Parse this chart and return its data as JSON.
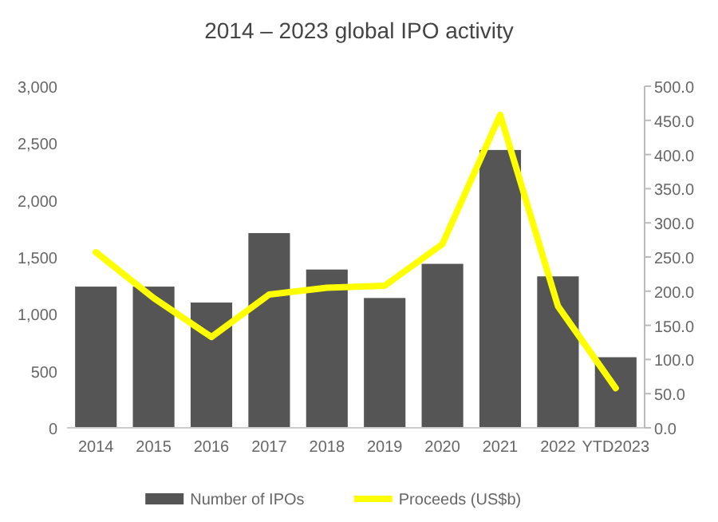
{
  "chart_data": {
    "type": "bar",
    "title": "2014 – 2023 global IPO activity",
    "categories": [
      "2014",
      "2015",
      "2016",
      "2017",
      "2018",
      "2019",
      "2020",
      "2021",
      "2022",
      "YTD2023"
    ],
    "series": [
      {
        "name": "Number of IPOs",
        "color": "#555555",
        "values": [
          1240,
          1240,
          1100,
          1710,
          1390,
          1140,
          1440,
          2440,
          1330,
          620
        ]
      },
      {
        "name": "Proceeds (US$b)",
        "type": "line",
        "axis": "y2",
        "color": "#ffff00",
        "values": [
          257,
          190,
          133,
          195,
          205,
          208,
          269,
          458,
          178,
          58
        ]
      }
    ],
    "ylim": [
      0,
      3000
    ],
    "yticks": [
      {
        "value": 0,
        "label": "0"
      },
      {
        "value": 500,
        "label": "500"
      },
      {
        "value": 1000,
        "label": "1,000"
      },
      {
        "value": 1500,
        "label": "1,500"
      },
      {
        "value": 2000,
        "label": "2,000"
      },
      {
        "value": 2500,
        "label": "2,500"
      },
      {
        "value": 3000,
        "label": "3,000"
      }
    ],
    "y2lim": [
      0,
      500
    ],
    "y2ticks": [
      {
        "value": 0,
        "label": "0.0"
      },
      {
        "value": 50,
        "label": "50.0"
      },
      {
        "value": 100,
        "label": "100.0"
      },
      {
        "value": 150,
        "label": "150.0"
      },
      {
        "value": 200,
        "label": "200.0"
      },
      {
        "value": 250,
        "label": "250.0"
      },
      {
        "value": 300,
        "label": "300.0"
      },
      {
        "value": 350,
        "label": "350.0"
      },
      {
        "value": 400,
        "label": "400.0"
      },
      {
        "value": 450,
        "label": "450.0"
      },
      {
        "value": 500,
        "label": "500.0"
      }
    ],
    "grid": false,
    "legend": "bottom",
    "marker": "none",
    "line_style": "solid"
  }
}
